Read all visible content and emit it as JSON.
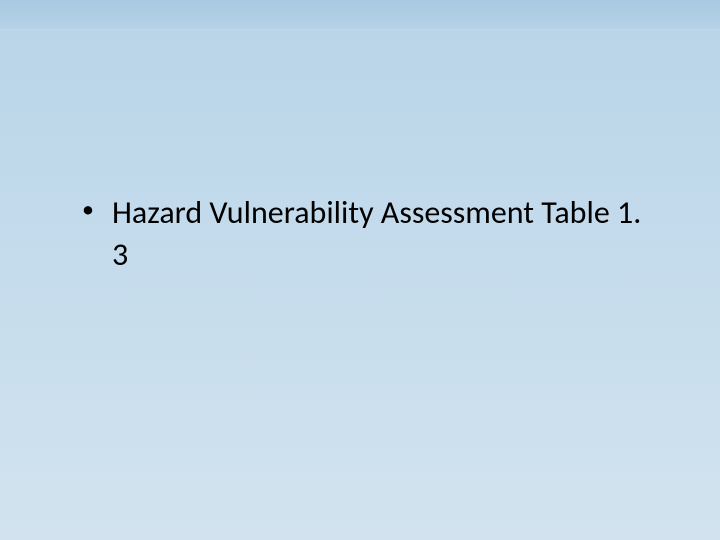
{
  "slide": {
    "background_gradient_top": "#b8d4e8",
    "background_gradient_mid": "#c5dcec",
    "background_gradient_bottom": "#d2e3ef",
    "header_band_color_top": "#a8c9e2",
    "header_band_color_bottom": "#b5d2e7",
    "text_color": "#000000",
    "font_family": "Calibri",
    "bullet_fontsize": 32,
    "items": [
      {
        "text": "Hazard Vulnerability Assessment Table 1. 3"
      }
    ]
  }
}
